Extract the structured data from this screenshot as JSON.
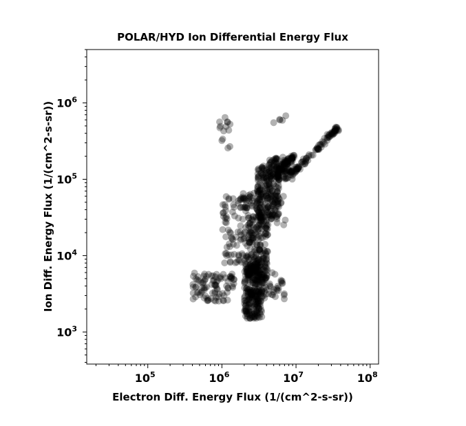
{
  "chart_data": {
    "type": "scatter",
    "title": "POLAR/HYD  Ion Differential Energy Flux",
    "xlabel": "Electron Diff. Energy Flux (1/(cm^2-s-sr))",
    "ylabel": "Ion Diff. Energy Flux (1/(cm^2-s-sr))",
    "xscale": "log",
    "yscale": "log",
    "xlim": [
      15000,
      130000000
    ],
    "ylim": [
      380,
      5000000
    ],
    "xticks": [
      {
        "value": 100000,
        "base": "10",
        "exp": "5"
      },
      {
        "value": 1000000,
        "base": "10",
        "exp": "6"
      },
      {
        "value": 10000000,
        "base": "10",
        "exp": "7"
      },
      {
        "value": 100000000,
        "base": "10",
        "exp": "8"
      }
    ],
    "yticks": [
      {
        "value": 1000,
        "base": "10",
        "exp": "3"
      },
      {
        "value": 10000,
        "base": "10",
        "exp": "4"
      },
      {
        "value": 100000,
        "base": "10",
        "exp": "5"
      },
      {
        "value": 1000000,
        "base": "10",
        "exp": "6"
      }
    ],
    "grid": false,
    "marker_color": "#000000",
    "marker_alpha": 0.3,
    "clusters": [
      {
        "x": [
          2000000,
          3500000
        ],
        "y": [
          1500,
          8000
        ],
        "n": 260
      },
      {
        "x": [
          2200000,
          4200000
        ],
        "y": [
          5000,
          40000
        ],
        "n": 200
      },
      {
        "x": [
          3000000,
          6000000
        ],
        "y": [
          30000,
          150000
        ],
        "n": 200
      },
      {
        "x": [
          4000000,
          9000000
        ],
        "y": [
          100000,
          200000
        ],
        "n": 110
      },
      {
        "x": [
          1000000,
          2200000
        ],
        "y": [
          8000,
          60000
        ],
        "n": 80
      },
      {
        "x": [
          400000,
          1500000
        ],
        "y": [
          2500,
          6000
        ],
        "n": 90
      },
      {
        "x": [
          3500000,
          7000000
        ],
        "y": [
          2500,
          6000
        ],
        "n": 40
      },
      {
        "x": [
          1800000,
          3500000
        ],
        "y": [
          40000,
          70000
        ],
        "n": 40
      },
      {
        "x": [
          900000,
          1300000
        ],
        "y": [
          250000,
          650000
        ],
        "n": 14
      },
      {
        "x": [
          5000000,
          9000000
        ],
        "y": [
          25000,
          60000
        ],
        "n": 10
      },
      {
        "x": [
          5000000,
          8000000
        ],
        "y": [
          450000,
          700000
        ],
        "n": 5
      }
    ],
    "lines": [
      {
        "from": [
          9000000,
          120000
        ],
        "to": [
          37000000,
          480000
        ],
        "n": 90
      },
      {
        "from": [
          5500000,
          130000
        ],
        "to": [
          9500000,
          200000
        ],
        "n": 40
      }
    ]
  }
}
